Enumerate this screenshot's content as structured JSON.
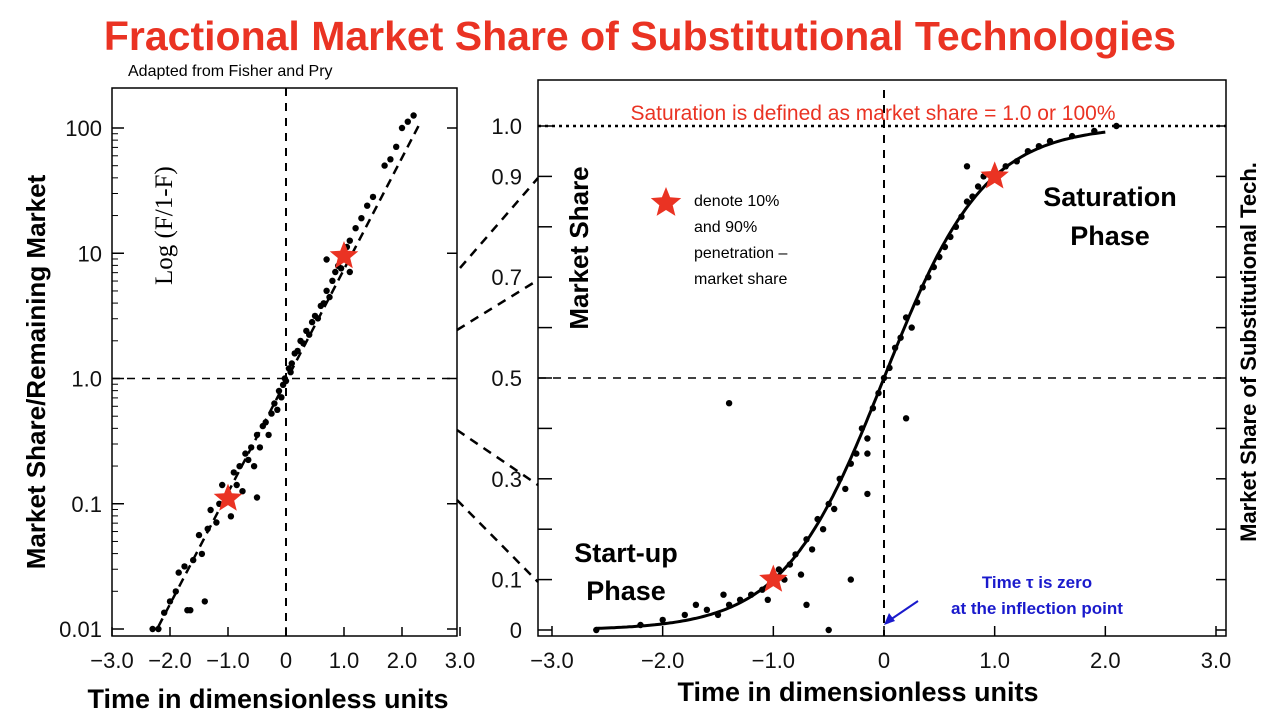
{
  "title": "Fractional Market Share of Substitutional Technologies",
  "subtitle": "Adapted from Fisher and Pry",
  "colors": {
    "title": "#ea3323",
    "star": "#ea3323",
    "note_blue": "#1a1acc",
    "ink": "#000000"
  },
  "chart_data": [
    {
      "type": "scatter",
      "name": "log-plot",
      "ylabel": "Market Share/Remaining Market",
      "yscale": "log",
      "ylim": [
        0.01,
        150
      ],
      "xlim": [
        -3.0,
        3.0
      ],
      "xlabel": "Time in dimensionless units",
      "formula": "Log (F/1-F)",
      "x_ticks": [
        "−3.0",
        "−2.0",
        "−1.0",
        "0",
        "1.0",
        "2.0",
        "3.0"
      ],
      "x_tick_values": [
        -3,
        -2,
        -1,
        0,
        1,
        2,
        3
      ],
      "y_ticks": [
        "0.01",
        "0.1",
        "1.0",
        "10",
        "100"
      ],
      "y_tick_values": [
        0.01,
        0.1,
        1,
        10,
        100
      ],
      "fit_line": {
        "x": [
          -2.2,
          2.3
        ],
        "log10_y": [
          -1.98,
          2.03
        ]
      },
      "stars": [
        {
          "x": -1.0,
          "y": 0.11
        },
        {
          "x": 1.0,
          "y": 9.5
        }
      ],
      "points": [
        [
          -2.2,
          -2.0
        ],
        [
          -2.1,
          -1.87
        ],
        [
          -2.0,
          -1.78
        ],
        [
          -1.9,
          -1.7
        ],
        [
          -1.85,
          -1.55
        ],
        [
          -1.75,
          -1.5
        ],
        [
          -1.7,
          -1.85
        ],
        [
          -1.6,
          -1.45
        ],
        [
          -1.5,
          -1.25
        ],
        [
          -1.45,
          -1.4
        ],
        [
          -1.35,
          -1.2
        ],
        [
          -1.3,
          -1.05
        ],
        [
          -1.2,
          -1.15
        ],
        [
          -1.15,
          -1.0
        ],
        [
          -1.1,
          -0.85
        ],
        [
          -1.0,
          -0.95
        ],
        [
          -0.95,
          -1.1
        ],
        [
          -0.9,
          -0.75
        ],
        [
          -0.85,
          -0.85
        ],
        [
          -0.8,
          -0.7
        ],
        [
          -0.75,
          -0.9
        ],
        [
          -0.7,
          -0.6
        ],
        [
          -0.65,
          -0.65
        ],
        [
          -0.6,
          -0.55
        ],
        [
          -0.55,
          -0.7
        ],
        [
          -0.5,
          -0.45
        ],
        [
          -0.45,
          -0.55
        ],
        [
          -0.4,
          -0.38
        ],
        [
          -0.35,
          -0.35
        ],
        [
          -0.3,
          -0.45
        ],
        [
          -0.25,
          -0.28
        ],
        [
          -0.2,
          -0.2
        ],
        [
          -0.15,
          -0.25
        ],
        [
          -0.12,
          -0.1
        ],
        [
          -0.08,
          -0.15
        ],
        [
          -0.05,
          -0.05
        ],
        [
          -0.02,
          0.0
        ],
        [
          0.0,
          -0.02
        ],
        [
          0.05,
          0.08
        ],
        [
          0.08,
          0.05
        ],
        [
          0.1,
          0.12
        ],
        [
          0.15,
          0.2
        ],
        [
          0.2,
          0.22
        ],
        [
          0.25,
          0.3
        ],
        [
          0.3,
          0.28
        ],
        [
          0.35,
          0.38
        ],
        [
          0.4,
          0.35
        ],
        [
          0.45,
          0.45
        ],
        [
          0.5,
          0.5
        ],
        [
          0.55,
          0.48
        ],
        [
          0.6,
          0.58
        ],
        [
          0.65,
          0.6
        ],
        [
          0.7,
          0.7
        ],
        [
          0.75,
          0.65
        ],
        [
          0.8,
          0.78
        ],
        [
          0.85,
          0.85
        ],
        [
          0.9,
          0.9
        ],
        [
          0.95,
          0.88
        ],
        [
          1.05,
          1.05
        ],
        [
          1.1,
          1.1
        ],
        [
          1.2,
          1.2
        ],
        [
          1.3,
          1.28
        ],
        [
          1.4,
          1.38
        ],
        [
          1.5,
          1.45
        ],
        [
          1.7,
          1.7
        ],
        [
          1.8,
          1.75
        ],
        [
          1.9,
          1.85
        ],
        [
          2.0,
          2.0
        ],
        [
          2.1,
          2.05
        ],
        [
          2.2,
          2.1
        ],
        [
          -1.4,
          -1.78
        ],
        [
          -1.65,
          -1.85
        ],
        [
          -0.5,
          -0.95
        ],
        [
          0.7,
          0.95
        ],
        [
          1.1,
          0.85
        ],
        [
          -2.3,
          -2.0
        ]
      ]
    },
    {
      "type": "line",
      "name": "s-curve",
      "ylabel": "Market Share",
      "ylabel_right": "Market Share of Substitutional Tech.",
      "ylim": [
        0,
        1.05
      ],
      "xlim": [
        -3.0,
        3.0
      ],
      "xlabel": "Time in dimensionless units",
      "x_ticks": [
        "−3.0",
        "−2.0",
        "−1.0",
        "0",
        "1.0",
        "2.0",
        "3.0"
      ],
      "x_tick_values": [
        -3,
        -2,
        -1,
        0,
        1,
        2,
        3
      ],
      "y_ticks": [
        "0",
        "0.1",
        "0.3",
        "0.5",
        "0.7",
        "0.9",
        "1.0"
      ],
      "y_tick_values": [
        0,
        0.1,
        0.3,
        0.5,
        0.7,
        0.9,
        1.0
      ],
      "curve": "F = 1 / (1 + exp(-2.2 t))",
      "curve_k": 2.2,
      "saturation": 1.0,
      "stars": [
        {
          "x": -1.0,
          "y": 0.1
        },
        {
          "x": 1.0,
          "y": 0.9
        }
      ],
      "points": [
        [
          -2.6,
          0.0
        ],
        [
          -2.2,
          0.01
        ],
        [
          -2.0,
          0.02
        ],
        [
          -1.8,
          0.03
        ],
        [
          -1.6,
          0.04
        ],
        [
          -1.5,
          0.03
        ],
        [
          -1.4,
          0.05
        ],
        [
          -1.3,
          0.06
        ],
        [
          -1.2,
          0.07
        ],
        [
          -1.1,
          0.08
        ],
        [
          -1.05,
          0.06
        ],
        [
          -0.95,
          0.12
        ],
        [
          -0.9,
          0.1
        ],
        [
          -0.85,
          0.13
        ],
        [
          -0.8,
          0.15
        ],
        [
          -0.75,
          0.11
        ],
        [
          -0.7,
          0.18
        ],
        [
          -0.65,
          0.16
        ],
        [
          -0.6,
          0.22
        ],
        [
          -0.55,
          0.2
        ],
        [
          -0.5,
          0.25
        ],
        [
          -0.45,
          0.24
        ],
        [
          -0.4,
          0.3
        ],
        [
          -0.35,
          0.28
        ],
        [
          -0.3,
          0.33
        ],
        [
          -0.25,
          0.35
        ],
        [
          -0.2,
          0.4
        ],
        [
          -0.15,
          0.38
        ],
        [
          -0.1,
          0.44
        ],
        [
          -0.05,
          0.47
        ],
        [
          0.0,
          0.5
        ],
        [
          0.05,
          0.52
        ],
        [
          0.1,
          0.56
        ],
        [
          0.15,
          0.58
        ],
        [
          0.2,
          0.62
        ],
        [
          0.25,
          0.6
        ],
        [
          0.3,
          0.65
        ],
        [
          0.35,
          0.68
        ],
        [
          0.4,
          0.7
        ],
        [
          0.45,
          0.72
        ],
        [
          0.5,
          0.74
        ],
        [
          0.55,
          0.76
        ],
        [
          0.6,
          0.78
        ],
        [
          0.65,
          0.8
        ],
        [
          0.7,
          0.82
        ],
        [
          0.75,
          0.85
        ],
        [
          0.8,
          0.86
        ],
        [
          0.85,
          0.88
        ],
        [
          0.9,
          0.9
        ],
        [
          1.1,
          0.92
        ],
        [
          1.2,
          0.93
        ],
        [
          1.3,
          0.95
        ],
        [
          1.4,
          0.96
        ],
        [
          1.5,
          0.97
        ],
        [
          1.7,
          0.98
        ],
        [
          1.9,
          0.99
        ],
        [
          2.1,
          1.0
        ],
        [
          -0.7,
          0.05
        ],
        [
          -0.5,
          0.0
        ],
        [
          -0.15,
          0.27
        ],
        [
          -1.7,
          0.05
        ],
        [
          -0.3,
          0.1
        ],
        [
          0.75,
          0.92
        ],
        [
          -1.45,
          0.07
        ]
      ],
      "outliers": [
        [
          -1.4,
          0.45
        ],
        [
          -0.15,
          0.35
        ],
        [
          0.2,
          0.42
        ]
      ]
    }
  ],
  "saturation_note": "Saturation is defined as market share  = 1.0  or 100%",
  "star_legend": [
    "denote 10%",
    "and 90%",
    "penetration –",
    "market share"
  ],
  "phases": {
    "startup": [
      "Start-up",
      "Phase"
    ],
    "saturation": [
      "Saturation",
      "Phase"
    ]
  },
  "inflection_note": [
    "Time τ is zero",
    "at the inflection point"
  ]
}
